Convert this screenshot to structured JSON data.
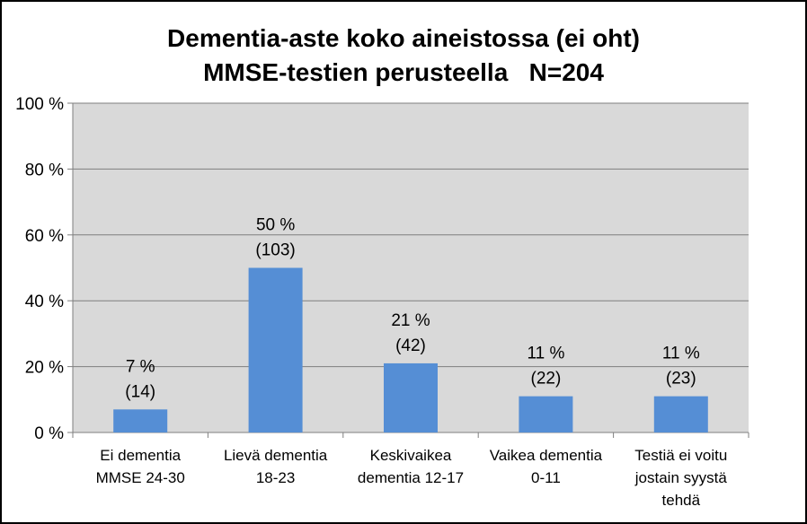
{
  "chart_data": {
    "type": "bar",
    "title": [
      "Dementia-aste koko aineistossa (ei oht)",
      "MMSE-testien perusteella   N=204"
    ],
    "categories": [
      [
        "Ei dementia",
        "MMSE 24-30"
      ],
      [
        "Lievä dementia",
        "18-23"
      ],
      [
        "Keskivaikea",
        "dementia 12-17"
      ],
      [
        "Vaikea dementia",
        "0-11"
      ],
      [
        "Testiä ei voitu",
        "jostain syystä",
        "tehdä"
      ]
    ],
    "values": [
      7,
      50,
      21,
      11,
      11
    ],
    "data_labels": [
      [
        "7 %",
        "(14)"
      ],
      [
        "50 %",
        "(103)"
      ],
      [
        "21 %",
        "(42)"
      ],
      [
        "11 %",
        "(22)"
      ],
      [
        "11 %",
        "(23)"
      ]
    ],
    "y_ticks": [
      "0 %",
      "20 %",
      "40 %",
      "60 %",
      "80 %",
      "100 %"
    ],
    "ylim": [
      0,
      100
    ],
    "grid": true,
    "legend": "none",
    "xlabel": "",
    "ylabel": ""
  },
  "colors": {
    "bar": "#558ED5",
    "plot_background": "#D9D9D9",
    "grid": "#7F7F7F",
    "text": "#000000"
  }
}
